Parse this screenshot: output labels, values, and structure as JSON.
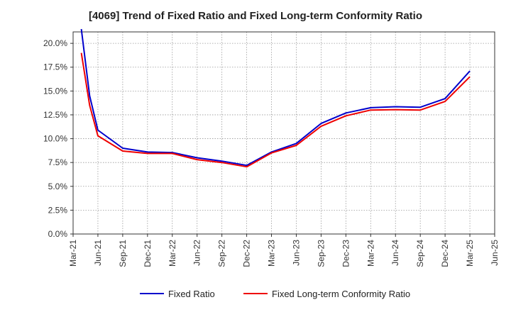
{
  "chart_data": {
    "type": "line",
    "title": "[4069]  Trend of Fixed Ratio and Fixed Long-term Conformity Ratio",
    "xlabel": "",
    "ylabel": "",
    "ylim": [
      0,
      21.2
    ],
    "y_tick_labels": [
      "0.0%",
      "2.5%",
      "5.0%",
      "7.5%",
      "10.0%",
      "12.5%",
      "15.0%",
      "17.5%",
      "20.0%"
    ],
    "y_tick_values": [
      0,
      2.5,
      5,
      7.5,
      10,
      12.5,
      15,
      17.5,
      20
    ],
    "x_tick_labels": [
      "Mar-21",
      "Jun-21",
      "Sep-21",
      "Dec-21",
      "Mar-22",
      "Jun-22",
      "Sep-22",
      "Dec-22",
      "Mar-23",
      "Jun-23",
      "Sep-23",
      "Dec-23",
      "Mar-24",
      "Jun-24",
      "Sep-24",
      "Dec-24",
      "Mar-25",
      "Jun-25"
    ],
    "grid": true,
    "legend_position": "bottom",
    "x": [
      "Apr-21",
      "May-21",
      "Jun-21",
      "Sep-21",
      "Dec-21",
      "Mar-22",
      "Jun-22",
      "Sep-22",
      "Dec-22",
      "Mar-23",
      "Jun-23",
      "Sep-23",
      "Dec-23",
      "Mar-24",
      "Jun-24",
      "Sep-24",
      "Dec-24",
      "Mar-25"
    ],
    "series": [
      {
        "name": "Fixed Ratio",
        "color": "#0000cc",
        "values": [
          21.5,
          14.5,
          10.9,
          9.0,
          8.6,
          8.55,
          8.0,
          7.65,
          7.2,
          8.6,
          9.5,
          11.6,
          12.7,
          13.25,
          13.35,
          13.3,
          14.2,
          17.1
        ]
      },
      {
        "name": "Fixed Long-term Conformity Ratio",
        "color": "#ee0000",
        "values": [
          19.0,
          13.5,
          10.3,
          8.7,
          8.45,
          8.45,
          7.8,
          7.5,
          7.05,
          8.5,
          9.3,
          11.3,
          12.4,
          13.0,
          13.05,
          13.0,
          13.9,
          16.5
        ]
      }
    ]
  }
}
